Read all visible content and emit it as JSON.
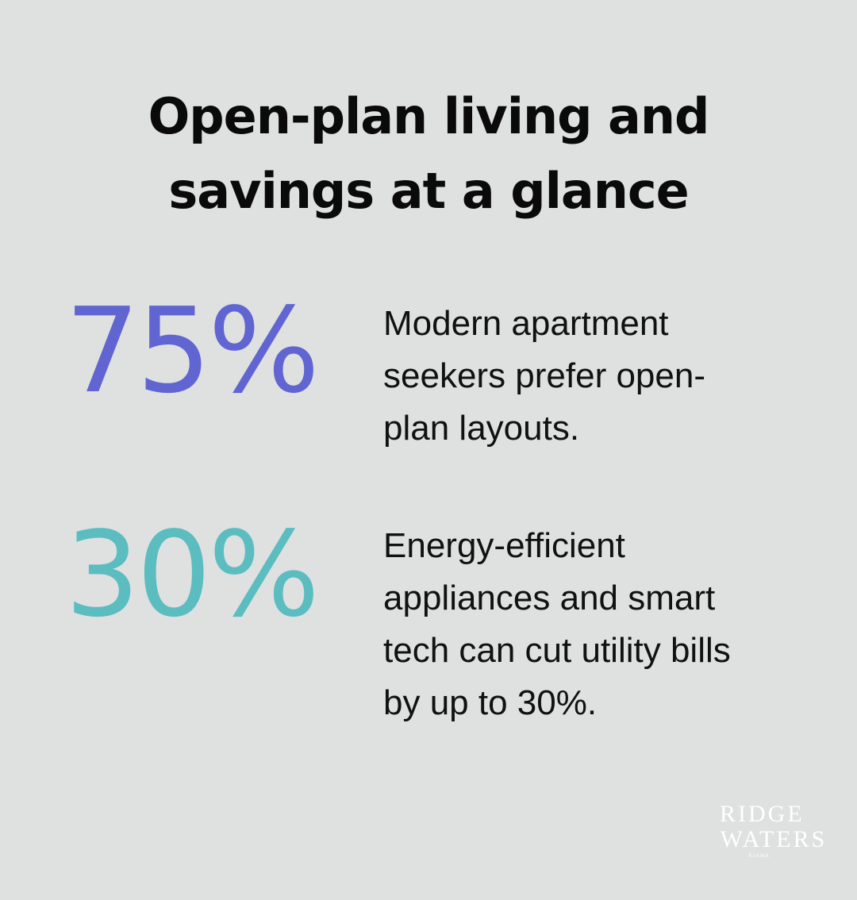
{
  "title": {
    "line1": "Open-plan living and",
    "line2": "savings at a glance"
  },
  "colors": {
    "background": "#dfe0e0",
    "stat_1": "#6065d2",
    "stat_2": "#5bbdc0",
    "text": "#111111",
    "logo": "#ffffff"
  },
  "stats": [
    {
      "value": "75%",
      "description_lines": [
        "Modern apartment",
        "seekers prefer open-",
        "plan layouts."
      ]
    },
    {
      "value": "30%",
      "description_lines": [
        "Energy-efficient",
        "appliances and smart",
        "tech can cut utility bills",
        "by up to 30%."
      ]
    }
  ],
  "logo": {
    "line1": "RIDGE",
    "line2": "WATERS",
    "sub": "KIAMA"
  }
}
